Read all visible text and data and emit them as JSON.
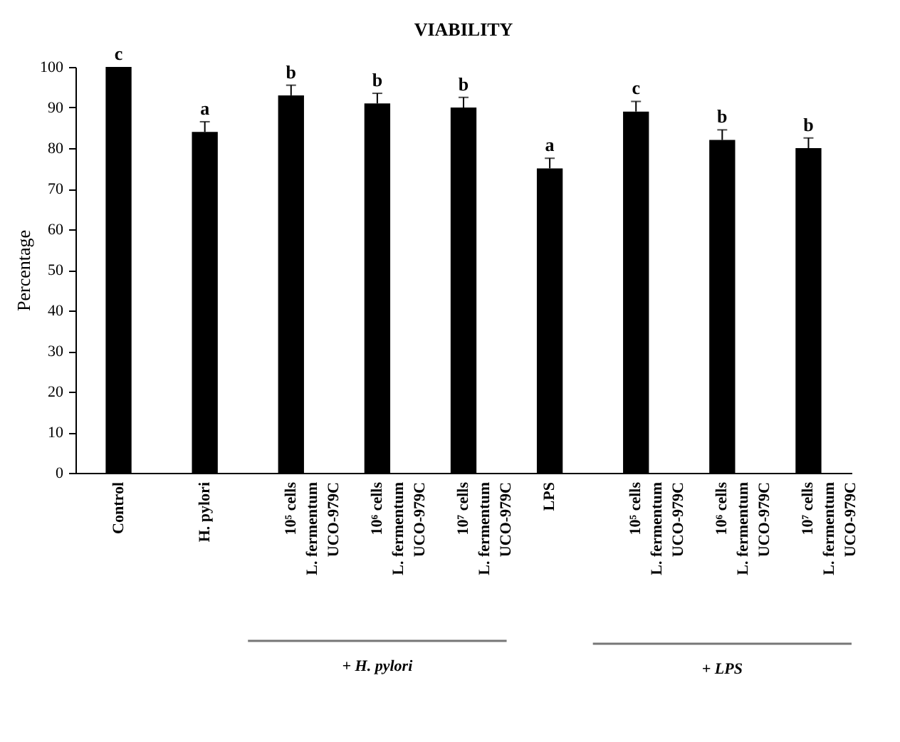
{
  "chart_data": {
    "type": "bar",
    "title": "VIABILITY",
    "ylabel": "Percentage",
    "categories": [
      "Control",
      "H. pylori",
      "10⁵ cells\nL. fermentum\nUCO-979C",
      "10⁶ cells\nL. fermentum\nUCO-979C",
      "10⁷ cells\nL. fermentum\nUCO-979C",
      "LPS",
      "10⁵ cells\nL. fermentum\nUCO-979C",
      "10⁶ cells\nL. fermentum\nUCO-979C",
      "10⁷ cells\nL. fermentum\nUCO-979C"
    ],
    "values": [
      100,
      84,
      93,
      91,
      90,
      75,
      89,
      82,
      80
    ],
    "errors": [
      null,
      2.5,
      2.5,
      2.5,
      2.5,
      2.5,
      2.5,
      2.5,
      2.5
    ],
    "value_labels": [
      "c",
      "a",
      "b",
      "b",
      "b",
      "a",
      "c",
      "b",
      "b"
    ],
    "color": "#000000",
    "ylim": [
      0,
      100
    ],
    "yticks": [
      0,
      10,
      20,
      30,
      40,
      50,
      60,
      70,
      80,
      90,
      100
    ],
    "grid": false,
    "annotations": [
      "+ H. pylori",
      "+ LPS"
    ]
  }
}
